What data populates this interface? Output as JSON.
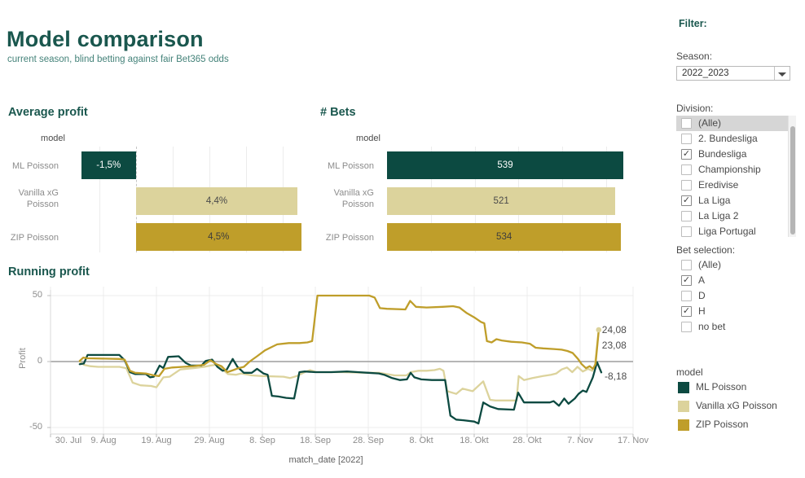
{
  "ui": {
    "header": {
      "title": "Model comparison",
      "subtitle": "current season, blind betting against fair Bet365 odds"
    },
    "sidebar": {
      "filter_label": "Filter:",
      "season": {
        "label": "Season:",
        "value": "2022_2023"
      },
      "division": {
        "label": "Division:",
        "options": [
          {
            "label": "(Alle)",
            "checked": false,
            "highlighted": true
          },
          {
            "label": "2. Bundesliga",
            "checked": false
          },
          {
            "label": "Bundesliga",
            "checked": true
          },
          {
            "label": "Championship",
            "checked": false
          },
          {
            "label": "Eredivise",
            "checked": false
          },
          {
            "label": "La Liga",
            "checked": true
          },
          {
            "label": "La Liga 2",
            "checked": false
          },
          {
            "label": "Liga Portugal",
            "checked": false
          }
        ]
      },
      "bet_selection": {
        "label": "Bet selection:",
        "options": [
          {
            "label": "(Alle)",
            "checked": false
          },
          {
            "label": "A",
            "checked": true
          },
          {
            "label": "D",
            "checked": false
          },
          {
            "label": "H",
            "checked": true
          },
          {
            "label": "no bet",
            "checked": false
          }
        ]
      },
      "legend": {
        "title": "model",
        "items": [
          {
            "label": "ML Poisson",
            "color": "#0c4a41"
          },
          {
            "label": "Vanilla xG Poisson",
            "color": "#dcd39c"
          },
          {
            "label": "ZIP Poisson",
            "color": "#bf9e2a"
          }
        ]
      }
    }
  },
  "chart_data": [
    {
      "type": "bar",
      "orientation": "horizontal",
      "title": "Average profit",
      "col_header": "model",
      "categories": [
        "ML Poisson",
        "Vanilla xG Poisson",
        "ZIP Poisson"
      ],
      "values": [
        -1.5,
        4.4,
        4.5
      ],
      "labels": [
        "-1,5%",
        "4,4%",
        "4,5%"
      ],
      "colors": [
        "#0c4a41",
        "#dcd39c",
        "#bf9e2a"
      ],
      "label_colors": [
        "#ffffff",
        "#4a4a4a",
        "#3d3d3d"
      ],
      "xlim": [
        -1.9,
        4.6
      ],
      "gridlines": [
        -1,
        1,
        2,
        3,
        4
      ],
      "zero_line": "dashed"
    },
    {
      "type": "bar",
      "orientation": "horizontal",
      "title": "# Bets",
      "col_header": "model",
      "categories": [
        "ML Poisson",
        "Vanilla xG Poisson",
        "ZIP Poisson"
      ],
      "values": [
        539,
        521,
        534
      ],
      "labels": [
        "539",
        "521",
        "534"
      ],
      "colors": [
        "#0c4a41",
        "#dcd39c",
        "#bf9e2a"
      ],
      "label_colors": [
        "#ffffff",
        "#4a4a4a",
        "#3d3d3d"
      ],
      "xlim": [
        0,
        545
      ],
      "gridlines": [
        100,
        200,
        300,
        400,
        500
      ]
    },
    {
      "type": "line",
      "title": "Running profit",
      "xlabel": "match_date [2022]",
      "ylabel": "Profit",
      "ylim": [
        -56,
        56
      ],
      "yticks": [
        50,
        0,
        -50
      ],
      "xtick_labels": [
        "30. Jul",
        "9. Aug",
        "19. Aug",
        "29. Aug",
        "8. Sep",
        "18. Sep",
        "28. Sep",
        "8. Okt",
        "18. Okt",
        "28. Okt",
        "7. Nov",
        "17. Nov"
      ],
      "xtick_days": [
        0,
        10,
        20,
        30,
        40,
        50,
        60,
        70,
        80,
        90,
        100,
        110
      ],
      "series": [
        {
          "name": "ML Poisson",
          "color": "#0c4a41",
          "end_label": "-8,18",
          "end_value": -8.18,
          "points": [
            [
              5.5,
              -2
            ],
            [
              6.3,
              -1.5
            ],
            [
              7,
              5
            ],
            [
              13,
              5
            ],
            [
              14,
              1
            ],
            [
              15,
              -8
            ],
            [
              16,
              -9.5
            ],
            [
              18,
              -9.5
            ],
            [
              18.8,
              -12
            ],
            [
              19.5,
              -11.5
            ],
            [
              20.6,
              -3
            ],
            [
              21.3,
              -5
            ],
            [
              22.2,
              3.5
            ],
            [
              24.2,
              4
            ],
            [
              25.5,
              -1
            ],
            [
              26.5,
              -3
            ],
            [
              28.5,
              -3
            ],
            [
              29.3,
              0.5
            ],
            [
              30.5,
              1.5
            ],
            [
              31.5,
              -4
            ],
            [
              32.5,
              -7
            ],
            [
              33.3,
              -6
            ],
            [
              34.4,
              2
            ],
            [
              35.3,
              -4
            ],
            [
              36.5,
              -8.5
            ],
            [
              38,
              -8.5
            ],
            [
              39,
              -5.5
            ],
            [
              40.2,
              -9
            ],
            [
              41,
              -10
            ],
            [
              41.8,
              -26
            ],
            [
              43,
              -26.5
            ],
            [
              44.5,
              -27.5
            ],
            [
              46,
              -28
            ],
            [
              47,
              -8
            ],
            [
              48,
              -7.5
            ],
            [
              50,
              -8
            ],
            [
              53,
              -8
            ],
            [
              56,
              -7.5
            ],
            [
              58,
              -8
            ],
            [
              60,
              -8.5
            ],
            [
              62,
              -9
            ],
            [
              63,
              -10
            ],
            [
              64.5,
              -12.5
            ],
            [
              66,
              -14
            ],
            [
              67.3,
              -13.5
            ],
            [
              68,
              -8.5
            ],
            [
              68.7,
              -12
            ],
            [
              70,
              -13.5
            ],
            [
              72,
              -14
            ],
            [
              74.5,
              -14
            ],
            [
              75.5,
              -41
            ],
            [
              76.6,
              -44
            ],
            [
              78,
              -44.5
            ],
            [
              80,
              -45.5
            ],
            [
              80.8,
              -47
            ],
            [
              81.7,
              -31
            ],
            [
              83,
              -34
            ],
            [
              84.5,
              -36
            ],
            [
              87.5,
              -36.5
            ],
            [
              88.3,
              -23.5
            ],
            [
              89.4,
              -31
            ],
            [
              94.3,
              -31
            ],
            [
              95,
              -30
            ],
            [
              96,
              -33.5
            ],
            [
              97,
              -28
            ],
            [
              97.8,
              -32
            ],
            [
              99,
              -28
            ],
            [
              99.7,
              -24.5
            ],
            [
              100.5,
              -22
            ],
            [
              101.2,
              -23
            ],
            [
              102.4,
              -12
            ],
            [
              103.2,
              -0.5
            ],
            [
              104,
              -8.18
            ]
          ]
        },
        {
          "name": "Vanilla xG Poisson",
          "color": "#dcd39c",
          "end_label": "24,08",
          "end_value": 24.08,
          "end_dot": true,
          "points": [
            [
              5.5,
              0
            ],
            [
              6.3,
              -2.5
            ],
            [
              7.5,
              -3.5
            ],
            [
              9,
              -4
            ],
            [
              13,
              -4
            ],
            [
              14.3,
              -5
            ],
            [
              15.5,
              -16
            ],
            [
              17,
              -18
            ],
            [
              19,
              -18.5
            ],
            [
              20,
              -19.5
            ],
            [
              21.3,
              -12
            ],
            [
              22.5,
              -11.5
            ],
            [
              24.5,
              -6
            ],
            [
              27,
              -5
            ],
            [
              29,
              -4
            ],
            [
              30.2,
              -3
            ],
            [
              31.2,
              -2.5
            ],
            [
              32.2,
              -5
            ],
            [
              33.5,
              -9.5
            ],
            [
              35,
              -10
            ],
            [
              36,
              -9
            ],
            [
              38,
              -10.5
            ],
            [
              40,
              -11
            ],
            [
              44,
              -11.5
            ],
            [
              45.2,
              -12.5
            ],
            [
              46.5,
              -11
            ],
            [
              48,
              -8
            ],
            [
              49,
              -6.5
            ],
            [
              50.2,
              -8
            ],
            [
              55,
              -8
            ],
            [
              60,
              -8.5
            ],
            [
              62,
              -8.5
            ],
            [
              63.5,
              -9.5
            ],
            [
              65,
              -10.5
            ],
            [
              67.2,
              -10.5
            ],
            [
              68,
              -8
            ],
            [
              69.5,
              -7
            ],
            [
              71,
              -7
            ],
            [
              72.5,
              -6.5
            ],
            [
              73.5,
              -5.5
            ],
            [
              74.2,
              -7
            ],
            [
              74.9,
              -22.5
            ],
            [
              76.6,
              -24.5
            ],
            [
              77.8,
              -20.5
            ],
            [
              79.7,
              -22.5
            ],
            [
              81.7,
              -15
            ],
            [
              83,
              -29
            ],
            [
              84,
              -29.5
            ],
            [
              88,
              -29.5
            ],
            [
              88.4,
              -11
            ],
            [
              89.4,
              -14
            ],
            [
              91,
              -12.5
            ],
            [
              93,
              -11
            ],
            [
              94.5,
              -10
            ],
            [
              95.5,
              -9
            ],
            [
              96.5,
              -6
            ],
            [
              97.5,
              -4.5
            ],
            [
              98.5,
              -8
            ],
            [
              99.5,
              -4
            ],
            [
              100.5,
              -7.5
            ],
            [
              101.5,
              -5.5
            ],
            [
              102.3,
              -7
            ],
            [
              102.8,
              -3
            ],
            [
              103.5,
              24.08
            ]
          ]
        },
        {
          "name": "ZIP Poisson",
          "color": "#bf9e2a",
          "end_label": "23,08",
          "end_value": 23.08,
          "points": [
            [
              5.5,
              0.5
            ],
            [
              6.2,
              3
            ],
            [
              7,
              2.5
            ],
            [
              13,
              2
            ],
            [
              14,
              1.5
            ],
            [
              15,
              -7
            ],
            [
              16,
              -8.5
            ],
            [
              18,
              -9
            ],
            [
              19.5,
              -10.5
            ],
            [
              20.5,
              -11
            ],
            [
              21.5,
              -5.5
            ],
            [
              23,
              -4.5
            ],
            [
              25,
              -4
            ],
            [
              27,
              -3.5
            ],
            [
              29,
              -2.5
            ],
            [
              30.2,
              1
            ],
            [
              31.3,
              -2
            ],
            [
              32.3,
              -3.5
            ],
            [
              33.4,
              -8
            ],
            [
              34.5,
              -6.5
            ],
            [
              35.5,
              -5
            ],
            [
              36.5,
              -4
            ],
            [
              37.6,
              0
            ],
            [
              39,
              4
            ],
            [
              40.5,
              8.5
            ],
            [
              42,
              11.5
            ],
            [
              42.8,
              13
            ],
            [
              45,
              14
            ],
            [
              47,
              14
            ],
            [
              48.5,
              14.5
            ],
            [
              49.4,
              15.5
            ],
            [
              50.4,
              50
            ],
            [
              55,
              50
            ],
            [
              60.2,
              50
            ],
            [
              61.2,
              48.5
            ],
            [
              62.2,
              40.5
            ],
            [
              63.5,
              40
            ],
            [
              67,
              39.5
            ],
            [
              67.9,
              46
            ],
            [
              69,
              41.5
            ],
            [
              71,
              41
            ],
            [
              74,
              41.5
            ],
            [
              76,
              42
            ],
            [
              77.2,
              41
            ],
            [
              78.5,
              37
            ],
            [
              80,
              33.5
            ],
            [
              81.3,
              30
            ],
            [
              81.9,
              29
            ],
            [
              82.4,
              15.5
            ],
            [
              83.3,
              14.5
            ],
            [
              84.2,
              17
            ],
            [
              85.2,
              16
            ],
            [
              87,
              15
            ],
            [
              89,
              14.5
            ],
            [
              90.5,
              13.5
            ],
            [
              91.6,
              10.5
            ],
            [
              93,
              10
            ],
            [
              95,
              9.5
            ],
            [
              96.5,
              9
            ],
            [
              97.6,
              8
            ],
            [
              98.6,
              6.5
            ],
            [
              99.6,
              2
            ],
            [
              100.3,
              -2
            ],
            [
              101.1,
              -5
            ],
            [
              101.8,
              -3.5
            ],
            [
              102.4,
              -5.5
            ],
            [
              102.9,
              -2
            ],
            [
              103.5,
              23.08
            ]
          ]
        }
      ]
    }
  ]
}
